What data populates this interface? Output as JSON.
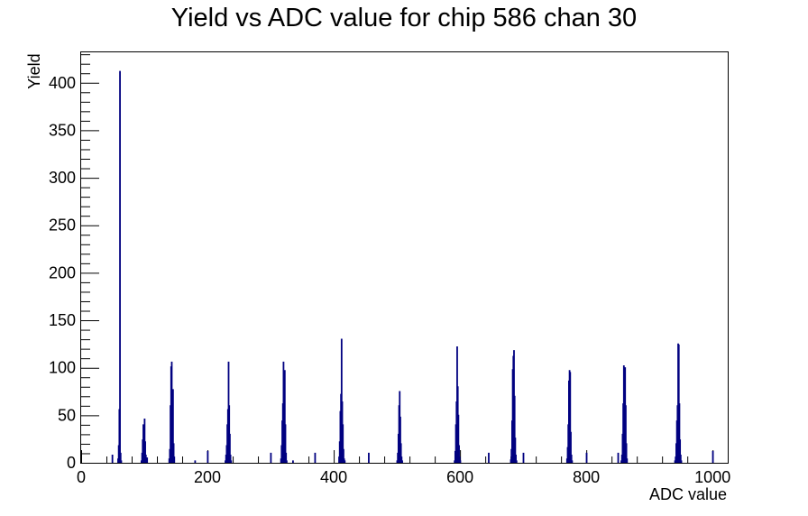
{
  "chart_data": {
    "type": "bar",
    "title": "Yield vs ADC value for chip 586 chan 30",
    "xlabel": "ADC value",
    "ylabel": "Yield",
    "xlim": [
      0,
      1024
    ],
    "ylim": [
      0,
      433
    ],
    "x_ticks": [
      0,
      200,
      400,
      600,
      800,
      1000
    ],
    "y_ticks": [
      0,
      50,
      100,
      150,
      200,
      250,
      300,
      350,
      400
    ],
    "grid": false,
    "legend": "none",
    "series_color": "#000080",
    "series": [
      {
        "x": [
          58,
          59,
          60,
          61,
          62,
          63,
          95,
          96,
          97,
          98,
          99,
          100,
          101,
          102,
          103,
          104,
          139,
          140,
          141,
          142,
          143,
          144,
          145,
          146,
          147,
          228,
          229,
          230,
          231,
          232,
          233,
          234,
          235,
          236,
          237,
          316,
          317,
          318,
          319,
          320,
          321,
          322,
          323,
          324,
          325,
          408,
          409,
          410,
          411,
          412,
          413,
          414,
          415,
          416,
          417,
          500,
          501,
          502,
          503,
          504,
          505,
          506,
          507,
          508,
          591,
          592,
          593,
          594,
          595,
          596,
          597,
          598,
          599,
          600,
          680,
          681,
          682,
          683,
          684,
          685,
          686,
          687,
          688,
          689,
          769,
          770,
          771,
          772,
          773,
          774,
          775,
          776,
          777,
          855,
          856,
          857,
          858,
          859,
          860,
          861,
          862,
          863,
          864,
          940,
          941,
          942,
          943,
          944,
          945,
          946,
          947,
          948,
          949,
          950,
          49,
          180,
          200,
          300,
          335,
          370,
          455,
          645,
          700,
          800,
          850,
          1000
        ],
        "values": [
          4,
          18,
          56,
          412,
          10,
          2,
          2,
          10,
          24,
          40,
          33,
          46,
          22,
          8,
          2,
          5,
          4,
          14,
          60,
          101,
          106,
          68,
          77,
          20,
          6,
          2,
          8,
          18,
          40,
          56,
          106,
          60,
          30,
          8,
          2,
          4,
          18,
          44,
          62,
          106,
          90,
          97,
          40,
          10,
          2,
          6,
          22,
          54,
          72,
          130,
          64,
          40,
          14,
          4,
          2,
          2,
          10,
          30,
          60,
          75,
          48,
          20,
          6,
          2,
          2,
          12,
          40,
          64,
          122,
          80,
          50,
          18,
          6,
          2,
          3,
          14,
          44,
          98,
          112,
          118,
          70,
          26,
          8,
          2,
          4,
          16,
          40,
          86,
          97,
          95,
          32,
          8,
          2,
          2,
          8,
          30,
          62,
          102,
          98,
          100,
          60,
          20,
          4,
          2,
          6,
          20,
          44,
          60,
          125,
          124,
          62,
          24,
          8,
          2,
          8,
          2,
          12,
          10,
          2,
          10,
          10,
          10,
          10,
          10,
          10,
          12
        ]
      }
    ]
  }
}
